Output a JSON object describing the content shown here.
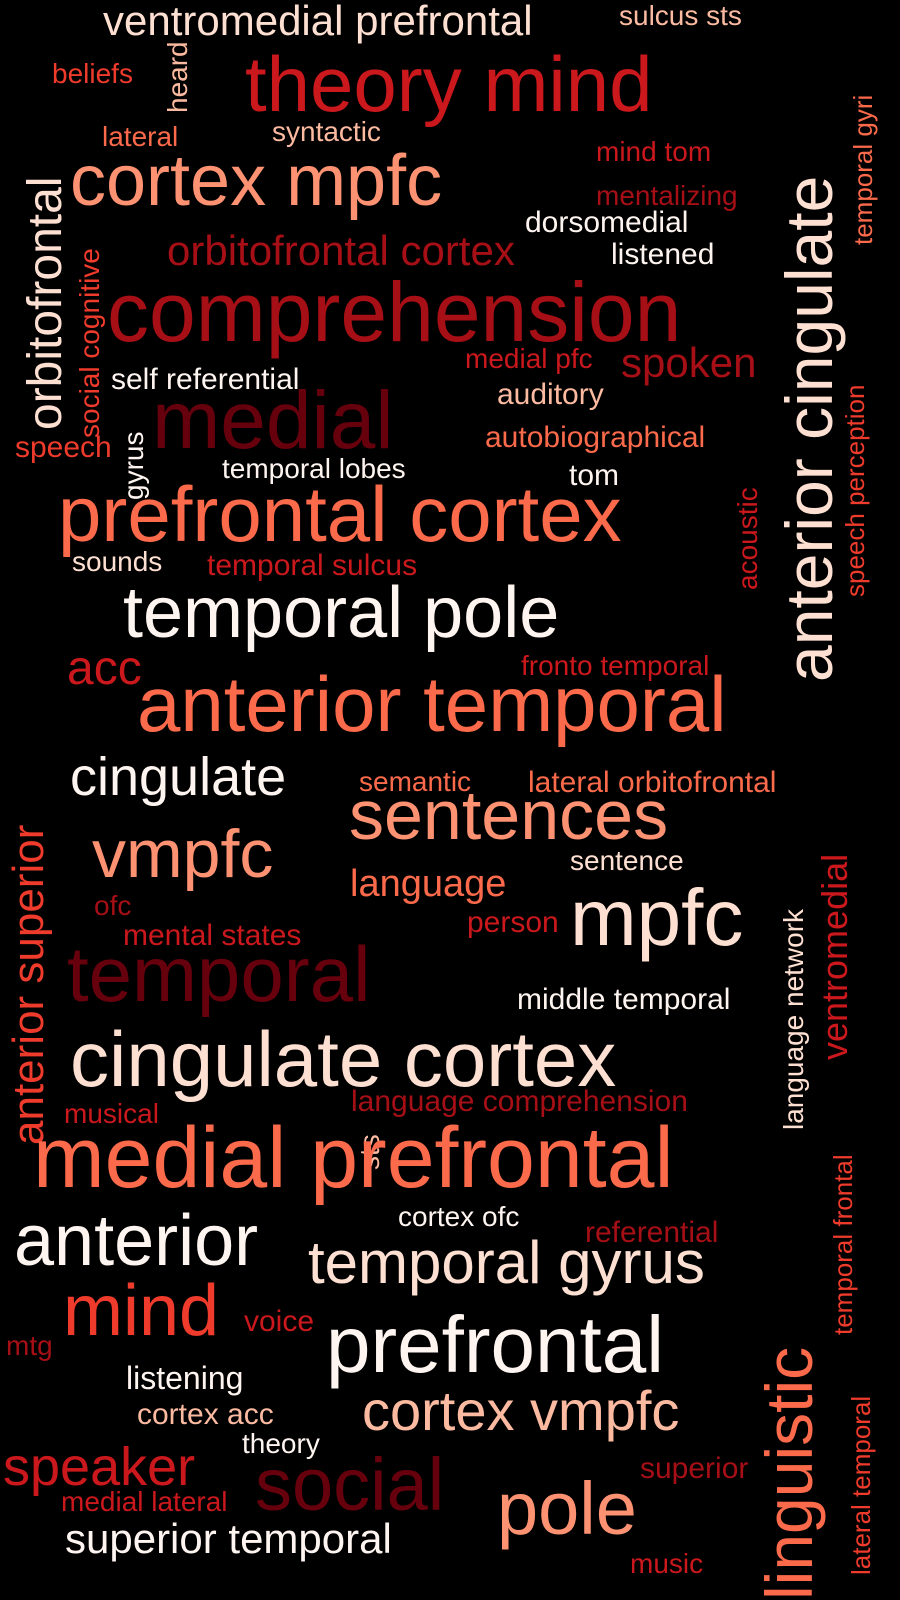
{
  "palette": {
    "background": "#000000",
    "darkest": "#67000d",
    "dark": "#a50f15",
    "strong": "#cb181d",
    "mid": "#ef3b2c",
    "light": "#fb6a4a",
    "pale": "#fc9272",
    "peach": "#fcbba1",
    "cream": "#fee0d2",
    "white": "#fff5f0"
  },
  "words": [
    {
      "text": "ventromedial prefrontal",
      "color": "#fee0d2",
      "vertical": false
    },
    {
      "text": "sulcus sts",
      "color": "#fcbba1",
      "vertical": false
    },
    {
      "text": "anterior cingulate",
      "color": "#fee0d2",
      "vertical": true
    },
    {
      "text": "theory mind",
      "color": "#cb181d",
      "vertical": false
    },
    {
      "text": "beliefs",
      "color": "#ef3b2c",
      "vertical": false
    },
    {
      "text": "heard",
      "color": "#fcbba1",
      "vertical": true
    },
    {
      "text": "temporal gyri",
      "color": "#fb6a4a",
      "vertical": true
    },
    {
      "text": "lateral",
      "color": "#fb6a4a",
      "vertical": false
    },
    {
      "text": "syntactic",
      "color": "#fcbba1",
      "vertical": false
    },
    {
      "text": "orbitofrontal",
      "color": "#fee0d2",
      "vertical": true
    },
    {
      "text": "mind tom",
      "color": "#cb181d",
      "vertical": false
    },
    {
      "text": "cortex mpfc",
      "color": "#fc9272",
      "vertical": false
    },
    {
      "text": "mentalizing",
      "color": "#a50f15",
      "vertical": false
    },
    {
      "text": "dorsomedial",
      "color": "#fff5f0",
      "vertical": false
    },
    {
      "text": "social cognitive",
      "color": "#ef3b2c",
      "vertical": true
    },
    {
      "text": "orbitofrontal cortex",
      "color": "#a50f15",
      "vertical": false
    },
    {
      "text": "listened",
      "color": "#fff5f0",
      "vertical": false
    },
    {
      "text": "comprehension",
      "color": "#a50f15",
      "vertical": false
    },
    {
      "text": "speech perception",
      "color": "#ef3b2c",
      "vertical": true
    },
    {
      "text": "medial pfc",
      "color": "#cb181d",
      "vertical": false
    },
    {
      "text": "spoken",
      "color": "#a50f15",
      "vertical": false
    },
    {
      "text": "self referential",
      "color": "#fff5f0",
      "vertical": false
    },
    {
      "text": "auditory",
      "color": "#fcbba1",
      "vertical": false
    },
    {
      "text": "medial",
      "color": "#67000d",
      "vertical": false
    },
    {
      "text": "gyrus",
      "color": "#fff5f0",
      "vertical": true
    },
    {
      "text": "speech",
      "color": "#ef3b2c",
      "vertical": false
    },
    {
      "text": "autobiographical",
      "color": "#fb6a4a",
      "vertical": false
    },
    {
      "text": "temporal lobes",
      "color": "#fff5f0",
      "vertical": false
    },
    {
      "text": "tom",
      "color": "#fff5f0",
      "vertical": false
    },
    {
      "text": "acoustic",
      "color": "#cb181d",
      "vertical": true
    },
    {
      "text": "prefrontal cortex",
      "color": "#fb6a4a",
      "vertical": false
    },
    {
      "text": "sounds",
      "color": "#fee0d2",
      "vertical": false
    },
    {
      "text": "temporal sulcus",
      "color": "#cb181d",
      "vertical": false
    },
    {
      "text": "temporal pole",
      "color": "#fff5f0",
      "vertical": false
    },
    {
      "text": "acc",
      "color": "#cb181d",
      "vertical": false
    },
    {
      "text": "fronto temporal",
      "color": "#cb181d",
      "vertical": false
    },
    {
      "text": "anterior superior",
      "color": "#ef3b2c",
      "vertical": true
    },
    {
      "text": "anterior temporal",
      "color": "#fb6a4a",
      "vertical": false
    },
    {
      "text": "cingulate",
      "color": "#fff5f0",
      "vertical": false
    },
    {
      "text": "semantic",
      "color": "#fb6a4a",
      "vertical": false
    },
    {
      "text": "lateral orbitofrontal",
      "color": "#fb6a4a",
      "vertical": false
    },
    {
      "text": "ventromedial",
      "color": "#cb181d",
      "vertical": true
    },
    {
      "text": "sentences",
      "color": "#fc9272",
      "vertical": false
    },
    {
      "text": "vmpfc",
      "color": "#fc9272",
      "vertical": false
    },
    {
      "text": "sentence",
      "color": "#fee0d2",
      "vertical": false
    },
    {
      "text": "language network",
      "color": "#fee0d2",
      "vertical": true
    },
    {
      "text": "language",
      "color": "#fb6a4a",
      "vertical": false
    },
    {
      "text": "ofc",
      "color": "#a50f15",
      "vertical": false
    },
    {
      "text": "person",
      "color": "#cb181d",
      "vertical": false
    },
    {
      "text": "mpfc",
      "color": "#fee0d2",
      "vertical": false
    },
    {
      "text": "mental states",
      "color": "#cb181d",
      "vertical": false
    },
    {
      "text": "temporal",
      "color": "#67000d",
      "vertical": false
    },
    {
      "text": "middle temporal",
      "color": "#fff5f0",
      "vertical": false
    },
    {
      "text": "cingulate cortex",
      "color": "#fee0d2",
      "vertical": false
    },
    {
      "text": "temporal frontal",
      "color": "#ef3b2c",
      "vertical": true
    },
    {
      "text": "musical",
      "color": "#cb181d",
      "vertical": false
    },
    {
      "text": "language comprehension",
      "color": "#a50f15",
      "vertical": false
    },
    {
      "text": "sts",
      "color": "#fcbba1",
      "vertical": true
    },
    {
      "text": "medial prefrontal",
      "color": "#fb6a4a",
      "vertical": false
    },
    {
      "text": "cortex ofc",
      "color": "#fff5f0",
      "vertical": false
    },
    {
      "text": "referential",
      "color": "#a50f15",
      "vertical": false
    },
    {
      "text": "anterior",
      "color": "#fff5f0",
      "vertical": false
    },
    {
      "text": "temporal gyrus",
      "color": "#fee0d2",
      "vertical": false
    },
    {
      "text": "linguistic",
      "color": "#fb6a4a",
      "vertical": true
    },
    {
      "text": "mind",
      "color": "#ef3b2c",
      "vertical": false
    },
    {
      "text": "voice",
      "color": "#cb181d",
      "vertical": false
    },
    {
      "text": "mtg",
      "color": "#a50f15",
      "vertical": false
    },
    {
      "text": "prefrontal",
      "color": "#fff5f0",
      "vertical": false
    },
    {
      "text": "lateral temporal",
      "color": "#ef3b2c",
      "vertical": true
    },
    {
      "text": "listening",
      "color": "#fff5f0",
      "vertical": false
    },
    {
      "text": "cortex acc",
      "color": "#fcbba1",
      "vertical": false
    },
    {
      "text": "cortex vmpfc",
      "color": "#fcbba1",
      "vertical": false
    },
    {
      "text": "theory",
      "color": "#fff5f0",
      "vertical": false
    },
    {
      "text": "speaker",
      "color": "#cb181d",
      "vertical": false
    },
    {
      "text": "superior",
      "color": "#a50f15",
      "vertical": false
    },
    {
      "text": "social",
      "color": "#67000d",
      "vertical": false
    },
    {
      "text": "pole",
      "color": "#fc9272",
      "vertical": false
    },
    {
      "text": "medial lateral",
      "color": "#cb181d",
      "vertical": false
    },
    {
      "text": "superior temporal",
      "color": "#fff5f0",
      "vertical": false
    },
    {
      "text": "music",
      "color": "#cb181d",
      "vertical": false
    }
  ]
}
